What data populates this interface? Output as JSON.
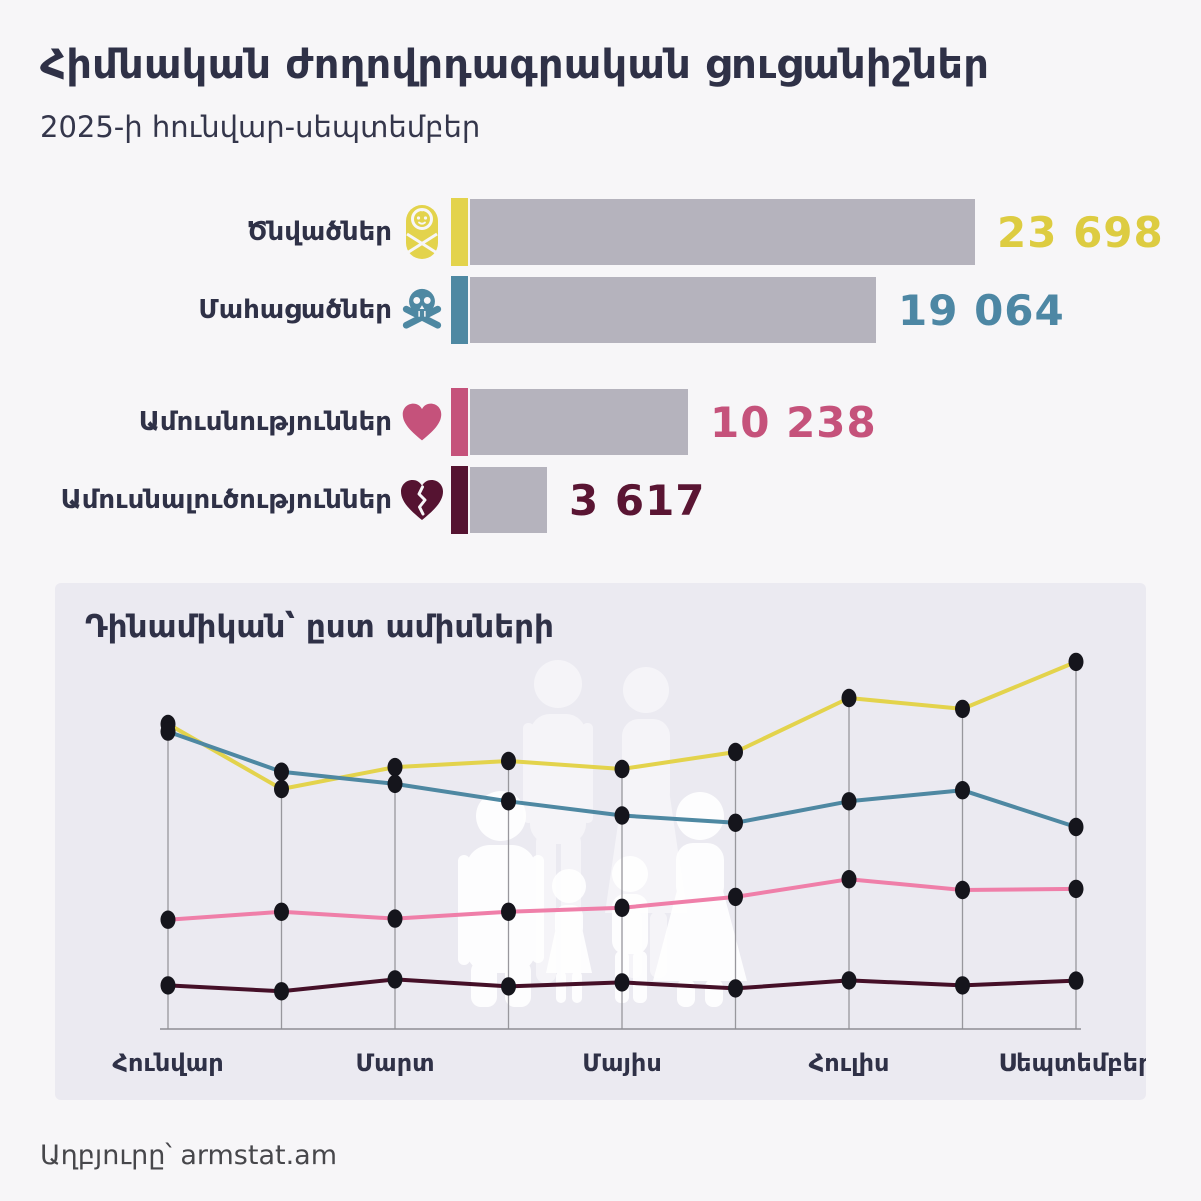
{
  "header": {
    "title": "Հիմնական ժողովրդագրական ցուցանիշներ",
    "subtitle": "2025-ի հունվար-սեպտեմբեր"
  },
  "colors": {
    "page_background": "#f7f6f8",
    "text_navy": "#2f3147",
    "bar_gray": "#b5b3bd",
    "births_yellow": "#e3d34c",
    "deaths_blue": "#4e88a2",
    "marriages_pink": "#c5527b",
    "marriages_line_pink": "#ef7fa9",
    "divorces_maroon": "#551331",
    "panel_background": "#ebeaf1",
    "gridline": "#98979d",
    "point_black": "#15151c"
  },
  "chart_data": [
    {
      "type": "bar",
      "title": "",
      "categories": [
        "Ծնվածներ",
        "Մահացածներ",
        "Ամուսնություններ",
        "Ամուսնալուծություններ"
      ],
      "values": [
        23698,
        19064,
        10238,
        3617
      ],
      "display_values": [
        "23 698",
        "19 064",
        "10 238",
        "3 617"
      ],
      "icons": [
        "baby-icon",
        "skull-icon",
        "heart-icon",
        "broken-heart-icon"
      ],
      "tick_colors": [
        "#e3d34c",
        "#4e88a2",
        "#c5527b",
        "#551331"
      ],
      "value_colors": [
        "#ddcc41",
        "#4d87a4",
        "#c5527b",
        "#5a1533"
      ],
      "bar_color": "#b5b3bd",
      "orientation": "horizontal",
      "xlabel": "",
      "ylabel": ""
    },
    {
      "type": "line",
      "title": "Դինամիկան՝ ըստ ամիսների",
      "months_count": 9,
      "x_tick_labels": [
        "Հունվար",
        "Մարտ",
        "Մայիս",
        "Հուլիս",
        "Սեպտեմբեր"
      ],
      "x_tick_month_indices": [
        0,
        2,
        4,
        6,
        8
      ],
      "ylim": [
        0,
        4000
      ],
      "grid": "vertical-per-point",
      "legend": "none",
      "series": [
        {
          "name": "Ծնվածներ",
          "color": "#e3d34c",
          "values": [
            2748,
            2162,
            2360,
            2415,
            2343,
            2496,
            2982,
            2884,
            3308
          ]
        },
        {
          "name": "Մահացածներ",
          "color": "#4e88a2",
          "values": [
            2680,
            2318,
            2208,
            2052,
            1924,
            1858,
            2052,
            2152,
            1820
          ]
        },
        {
          "name": "Ամուսնություններ",
          "color": "#ef7fa9",
          "values": [
            985,
            1056,
            995,
            1056,
            1092,
            1190,
            1350,
            1252,
            1262
          ]
        },
        {
          "name": "Ամուսնալուծություններ",
          "color": "#451028",
          "values": [
            393,
            340,
            447,
            384,
            420,
            366,
            438,
            393,
            436
          ]
        }
      ]
    }
  ],
  "source": {
    "label": "Աղբյուրը՝ armstat.am"
  }
}
